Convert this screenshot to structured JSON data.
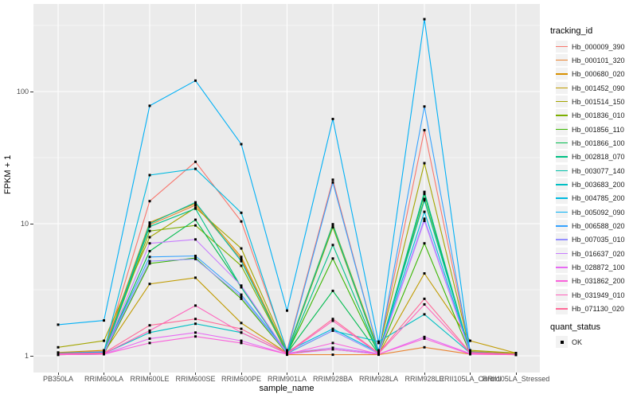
{
  "chart_data": {
    "type": "line",
    "xlabel": "sample_name",
    "ylabel": "FPKM + 1",
    "y_scale": "log10",
    "ylim": [
      1,
      400
    ],
    "grid": true,
    "panel_bg": "#EBEBEB",
    "grid_color": "#FFFFFF",
    "point_color": "#000000",
    "y_ticks": [
      {
        "label": "100",
        "value": 100
      },
      {
        "label": "10",
        "value": 10
      },
      {
        "label": "1",
        "value": 1
      }
    ],
    "y_minor_ticks": [
      316.23,
      31.62,
      3.162
    ],
    "categories": [
      "PB350LA",
      "RRIM600LA",
      "RRIM600LE",
      "RRIM600SE",
      "RRIM600PE",
      "RRIM901LA",
      "RRIM928BA",
      "RRIM928LA",
      "RRIM928LE",
      "RRII105LA_Control",
      "RRII105LA_Stressed"
    ],
    "legend_position": "right",
    "legend": {
      "tracking_title": "tracking_id",
      "quant_title": "quant_status",
      "quant_items": [
        {
          "label": "OK"
        }
      ]
    },
    "series": [
      {
        "name": "Hb_000009_390",
        "color": "#F8766D",
        "values": [
          1.05,
          1.08,
          14.8,
          29.4,
          10.4,
          1.1,
          21.5,
          1.08,
          51,
          1.08,
          1.04
        ]
      },
      {
        "name": "Hb_000101_320",
        "color": "#EA8331",
        "values": [
          1.03,
          1.05,
          9.8,
          13.8,
          5.4,
          1.02,
          1.02,
          1.02,
          1.16,
          1.03,
          1.02
        ]
      },
      {
        "name": "Hb_000680_020",
        "color": "#D89000",
        "values": [
          1.06,
          1.1,
          10.2,
          14.2,
          5.6,
          1.06,
          9.6,
          1.05,
          15.2,
          1.08,
          1.04
        ]
      },
      {
        "name": "Hb_001452_090",
        "color": "#C09B00",
        "values": [
          1.04,
          1.06,
          3.5,
          3.9,
          1.77,
          1.05,
          1.12,
          1.03,
          4.2,
          1.3,
          1.05
        ]
      },
      {
        "name": "Hb_001514_150",
        "color": "#A3A500",
        "values": [
          1.16,
          1.3,
          7.9,
          13.2,
          6.5,
          1.08,
          9.9,
          1.1,
          28.7,
          1.1,
          1.05
        ]
      },
      {
        "name": "Hb_001836_010",
        "color": "#7CAE00",
        "values": [
          1.02,
          1.04,
          8.8,
          9.7,
          4.8,
          1.05,
          9.4,
          1.06,
          15.4,
          1.06,
          1.02
        ]
      },
      {
        "name": "Hb_001856_110",
        "color": "#39B600",
        "values": [
          1.02,
          1.03,
          5.0,
          5.5,
          2.7,
          1.04,
          5.45,
          1.04,
          7.1,
          1.04,
          1.02
        ]
      },
      {
        "name": "Hb_001866_100",
        "color": "#00BB4E",
        "values": [
          1.03,
          1.04,
          6.2,
          10.7,
          3.3,
          1.05,
          3.1,
          1.04,
          16.8,
          1.04,
          1.02
        ]
      },
      {
        "name": "Hb_002818_070",
        "color": "#00C083",
        "values": [
          1.02,
          1.03,
          9.5,
          13.0,
          3.3,
          1.04,
          6.9,
          1.03,
          17.4,
          1.05,
          1.02
        ]
      },
      {
        "name": "Hb_003077_140",
        "color": "#00C1A9",
        "values": [
          1.04,
          1.05,
          10.0,
          14.5,
          5.2,
          1.06,
          9.8,
          1.05,
          15.0,
          1.07,
          1.03
        ]
      },
      {
        "name": "Hb_003683_200",
        "color": "#00BFC4",
        "values": [
          1.03,
          1.04,
          1.5,
          1.75,
          1.5,
          1.04,
          1.55,
          1.28,
          2.06,
          1.05,
          1.02
        ]
      },
      {
        "name": "Hb_004785_200",
        "color": "#00BAE0",
        "values": [
          1.05,
          1.07,
          23.3,
          26.0,
          12.1,
          1.08,
          1.6,
          1.06,
          12.3,
          1.06,
          1.03
        ]
      },
      {
        "name": "Hb_005092_090",
        "color": "#00B0F6",
        "values": [
          1.72,
          1.85,
          78,
          121,
          40,
          2.2,
          62,
          1.25,
          353,
          1.06,
          1.03
        ]
      },
      {
        "name": "Hb_006588_020",
        "color": "#35A2FF",
        "values": [
          1.04,
          1.06,
          5.6,
          5.7,
          2.9,
          1.07,
          20.5,
          1.08,
          77,
          1.06,
          1.03
        ]
      },
      {
        "name": "Hb_007035_010",
        "color": "#9590FF",
        "values": [
          1.03,
          1.05,
          5.2,
          5.4,
          2.8,
          1.05,
          1.55,
          1.04,
          10.9,
          1.05,
          1.02
        ]
      },
      {
        "name": "Hb_016637_020",
        "color": "#C77CFF",
        "values": [
          1.03,
          1.04,
          7.1,
          7.6,
          3.4,
          1.05,
          1.15,
          1.04,
          10.5,
          1.05,
          1.02
        ]
      },
      {
        "name": "Hb_028872_100",
        "color": "#E76BF3",
        "values": [
          1.02,
          1.03,
          1.35,
          1.5,
          1.3,
          1.03,
          1.12,
          1.03,
          1.39,
          1.04,
          1.02
        ]
      },
      {
        "name": "Hb_031862_200",
        "color": "#FA62DB",
        "values": [
          1.02,
          1.03,
          1.25,
          1.4,
          1.25,
          1.03,
          1.25,
          1.03,
          1.35,
          1.03,
          1.02
        ]
      },
      {
        "name": "Hb_031949_010",
        "color": "#FF62BC",
        "values": [
          1.03,
          1.04,
          1.55,
          2.4,
          1.5,
          1.04,
          1.84,
          1.04,
          2.45,
          1.05,
          1.02
        ]
      },
      {
        "name": "Hb_071130_020",
        "color": "#FF6A98",
        "values": [
          1.04,
          1.05,
          1.7,
          1.9,
          1.6,
          1.05,
          1.9,
          1.05,
          2.7,
          1.06,
          1.03
        ]
      }
    ]
  }
}
